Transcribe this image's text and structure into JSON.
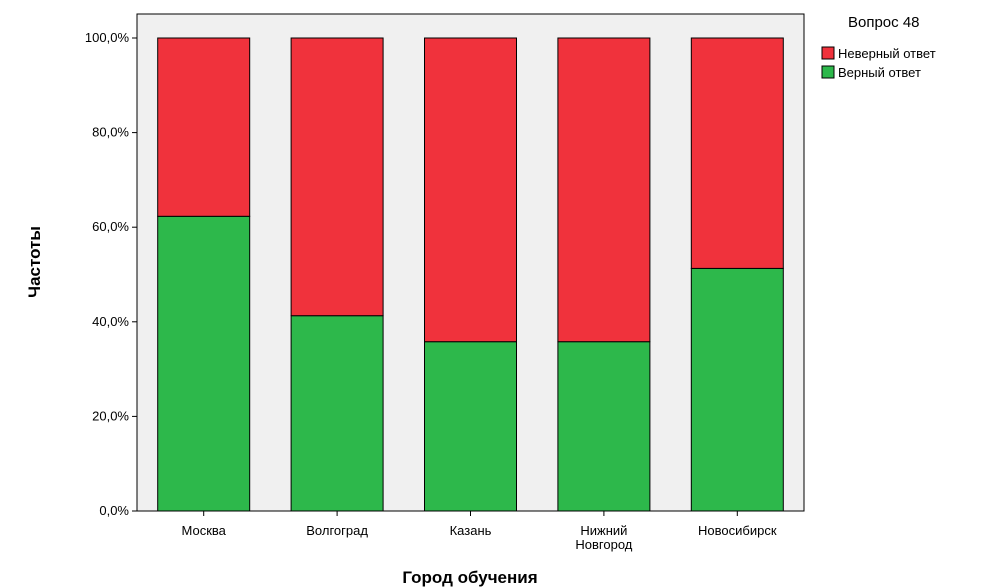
{
  "chart_data": {
    "type": "bar",
    "stacked": true,
    "categories": [
      "Москва",
      "Волгоград",
      "Казань",
      "Нижний Новгород",
      "Новосибирск"
    ],
    "category_label_lines": [
      [
        "Москва"
      ],
      [
        "Волгоград"
      ],
      [
        "Казань"
      ],
      [
        "Нижний",
        "Новгород"
      ],
      [
        "Новосибирск"
      ]
    ],
    "series": [
      {
        "name": "Верный ответ",
        "values": [
          62.3,
          41.3,
          35.8,
          35.8,
          51.3
        ],
        "color": "#2db84b"
      },
      {
        "name": "Неверный ответ",
        "values": [
          37.7,
          58.7,
          64.2,
          64.2,
          48.7
        ],
        "color": "#f0323c"
      }
    ],
    "xlabel": "Город обучения",
    "ylabel": "Частоты",
    "ylim": [
      0,
      100
    ],
    "yticks": [
      "0,0%",
      "20,0%",
      "40,0%",
      "60,0%",
      "80,0%",
      "100,0%"
    ],
    "ytick_values": [
      0,
      20,
      40,
      60,
      80,
      100
    ],
    "legend": {
      "title": "Вопрос 48",
      "entries": [
        "Неверный ответ",
        "Верный ответ"
      ],
      "placement": "top-right"
    },
    "grid": false,
    "plot_background": "#f0f0f0"
  }
}
